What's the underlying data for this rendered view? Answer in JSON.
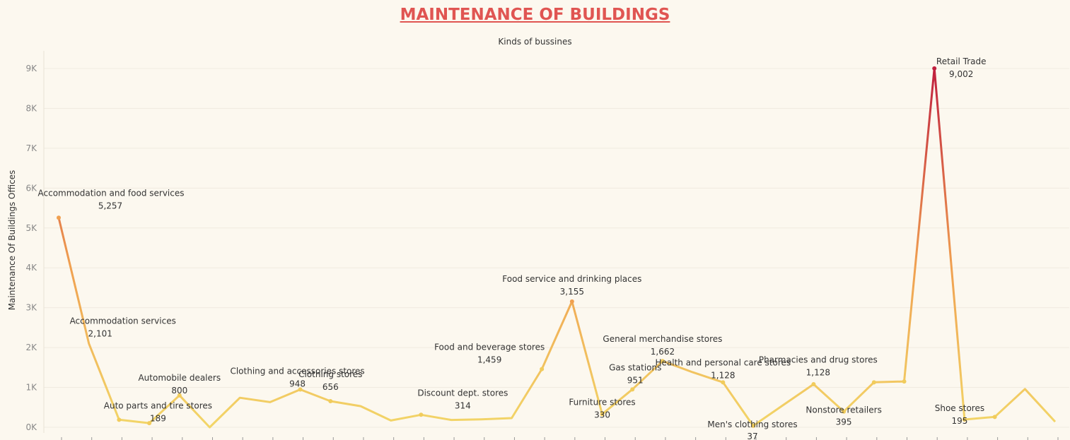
{
  "chart_data": {
    "type": "line",
    "title": "MAINTENANCE OF BUILDINGS",
    "subtitle": "Kinds of bussines",
    "ylabel": "Maintenance Of Buildings Offices",
    "ylim": [
      0,
      9500
    ],
    "yticks": [
      0,
      1000,
      2000,
      3000,
      4000,
      5000,
      6000,
      7000,
      8000,
      9000
    ],
    "ytick_labels": [
      "0K",
      "1K",
      "2K",
      "3K",
      "4K",
      "5K",
      "6K",
      "7K",
      "8K",
      "9K"
    ],
    "grid": true,
    "color_scale": {
      "low": "#f2d668",
      "mid": "#f0a050",
      "high": "#c0203e"
    },
    "points": [
      {
        "name": "Accommodation and food services",
        "value": 5257,
        "label": "Accommodation and food services",
        "value_label": "5,257",
        "marked": true
      },
      {
        "name": "Accommodation services",
        "value": 2101,
        "label": "Accommodation services",
        "value_label": "2,101",
        "marked": false
      },
      {
        "name": "Auto parts and tire stores",
        "value": 189,
        "label": "Auto parts and tire stores",
        "value_label": "189",
        "marked": true
      },
      {
        "name": "",
        "value": 105,
        "marked": true
      },
      {
        "name": "Automobile dealers",
        "value": 800,
        "label": "Automobile dealers",
        "value_label": "800",
        "marked": true
      },
      {
        "name": "",
        "value": 0,
        "marked": false
      },
      {
        "name": "",
        "value": 740,
        "marked": false
      },
      {
        "name": "",
        "value": 630,
        "marked": false
      },
      {
        "name": "Clothing and accessories stores",
        "value": 948,
        "label": "Clothing and accessories stores",
        "value_label": "948",
        "marked": true
      },
      {
        "name": "Clothing stores",
        "value": 656,
        "label": "Clothing stores",
        "value_label": "656",
        "marked": true
      },
      {
        "name": "",
        "value": 530,
        "marked": false
      },
      {
        "name": "",
        "value": 170,
        "marked": false
      },
      {
        "name": "Discount dept. stores",
        "value": 314,
        "label": "Discount dept. stores",
        "value_label": "314",
        "marked": true
      },
      {
        "name": "",
        "value": 185,
        "marked": false
      },
      {
        "name": "",
        "value": 200,
        "marked": false
      },
      {
        "name": "",
        "value": 230,
        "marked": false
      },
      {
        "name": "Food and beverage stores",
        "value": 1459,
        "label": "Food and beverage stores",
        "value_label": "1,459",
        "marked": true
      },
      {
        "name": "Food service and drinking places",
        "value": 3155,
        "label": "Food service and drinking places",
        "value_label": "3,155",
        "marked": true
      },
      {
        "name": "Furniture stores",
        "value": 330,
        "label": "Furniture stores",
        "value_label": "330",
        "marked": true
      },
      {
        "name": "Gas stations",
        "value": 951,
        "label": "Gas stations",
        "value_label": "951",
        "marked": true
      },
      {
        "name": "General merchandise stores",
        "value": 1662,
        "label": "General merchandise stores",
        "value_label": "1,662",
        "marked": true
      },
      {
        "name": "",
        "value": 1380,
        "marked": false
      },
      {
        "name": "Health and personal care stores",
        "value": 1128,
        "label": "Health and personal care stores",
        "value_label": "1,128",
        "marked": true
      },
      {
        "name": "Men's clothing stores",
        "value": 37,
        "label": "Men's clothing stores",
        "value_label": "37",
        "marked": true
      },
      {
        "name": "",
        "value": 560,
        "marked": false
      },
      {
        "name": "",
        "value": 1080,
        "marked": true
      },
      {
        "name": "Nonstore retailers",
        "value": 395,
        "label": "Nonstore retailers",
        "value_label": "395",
        "marked": true
      },
      {
        "name": "Pharmacies and drug stores",
        "value": 1128,
        "label": "Pharmacies and drug stores",
        "value_label": "1,128",
        "marked": true
      },
      {
        "name": "",
        "value": 1150,
        "marked": true
      },
      {
        "name": "Retail Trade",
        "value": 9002,
        "label": "Retail Trade",
        "value_label": "9,002",
        "marked": true
      },
      {
        "name": "Shoe stores",
        "value": 195,
        "label": "Shoe stores",
        "value_label": "195",
        "marked": true
      },
      {
        "name": "",
        "value": 260,
        "marked": true
      },
      {
        "name": "",
        "value": 960,
        "marked": false
      },
      {
        "name": "",
        "value": 140,
        "marked": false
      }
    ]
  }
}
